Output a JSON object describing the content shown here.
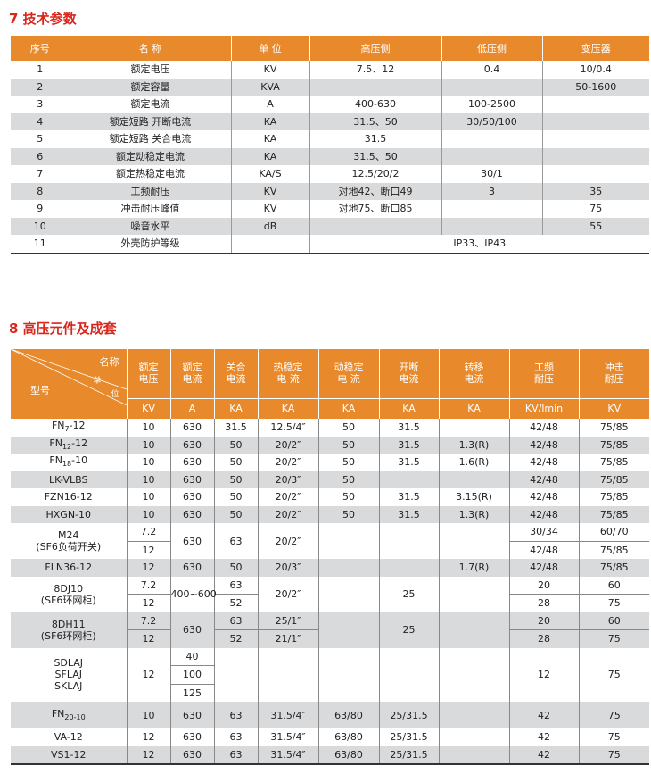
{
  "section1": {
    "title": "7 技术参数",
    "headers": [
      "序号",
      "名  称",
      "单  位",
      "高压侧",
      "低压侧",
      "变压器"
    ],
    "rows": [
      [
        "1",
        "额定电压",
        "KV",
        "7.5、12",
        "0.4",
        "10/0.4"
      ],
      [
        "2",
        "额定容量",
        "KVA",
        "",
        "",
        "50-1600"
      ],
      [
        "3",
        "额定电流",
        "A",
        "400-630",
        "100-2500",
        ""
      ],
      [
        "4",
        "额定短路 开断电流",
        "KA",
        "31.5、50",
        "30/50/100",
        ""
      ],
      [
        "5",
        "额定短路 关合电流",
        "KA",
        "31.5",
        "",
        ""
      ],
      [
        "6",
        "额定动稳定电流",
        "KA",
        "31.5、50",
        "",
        ""
      ],
      [
        "7",
        "额定热稳定电流",
        "KA/S",
        "12.5/20/2",
        "30/1",
        ""
      ],
      [
        "8",
        "工频耐压",
        "KV",
        "对地42、断口49",
        "3",
        "35"
      ],
      [
        "9",
        "冲击耐压峰值",
        "KV",
        "对地75、断口85",
        "",
        "75"
      ],
      [
        "10",
        "噪音水平",
        "dB",
        "",
        "",
        "55"
      ],
      [
        "11",
        "外壳防护等级",
        "",
        "IP33、IP43"
      ]
    ]
  },
  "section2": {
    "title": "8 高压元件及成套",
    "corner": {
      "name": "名称",
      "unit_1": "单",
      "unit_2": "位",
      "model": "型号"
    },
    "columns": [
      {
        "name": "额定\n电压",
        "unit": "KV"
      },
      {
        "name": "额定\n电流",
        "unit": "A"
      },
      {
        "name": "关合\n电流",
        "unit": "KA"
      },
      {
        "name": "热稳定\n电  流",
        "unit": "KA"
      },
      {
        "name": "动稳定\n电    流",
        "unit": "KA"
      },
      {
        "name": "开断\n电流",
        "unit": "KA"
      },
      {
        "name": "转移\n电流",
        "unit": "KA"
      },
      {
        "name": "工频\n耐压",
        "unit": "KV/lmin"
      },
      {
        "name": "冲击\n耐压",
        "unit": "KV"
      }
    ],
    "rows": {
      "fn7": {
        "model": "FN",
        "sub": "7",
        "suffix": "-12",
        "values": [
          "10",
          "630",
          "31.5",
          "12.5/4″",
          "50",
          "31.5",
          "",
          "42/48",
          "75/85"
        ]
      },
      "fn12": {
        "model": "FN",
        "sub": "12",
        "suffix": "-12",
        "values": [
          "10",
          "630",
          "50",
          "20/2″",
          "50",
          "31.5",
          "1.3(R)",
          "42/48",
          "75/85"
        ]
      },
      "fn18": {
        "model": "FN",
        "sub": "18",
        "suffix": "-10",
        "values": [
          "10",
          "630",
          "50",
          "20/2″",
          "50",
          "31.5",
          "1.6(R)",
          "42/48",
          "75/85"
        ]
      },
      "lk": {
        "model": "LK-VLBS",
        "values": [
          "10",
          "630",
          "50",
          "20/3″",
          "50",
          "",
          "",
          "42/48",
          "75/85"
        ]
      },
      "fzn": {
        "model": "FZN16-12",
        "values": [
          "10",
          "630",
          "50",
          "20/2″",
          "50",
          "31.5",
          "3.15(R)",
          "42/48",
          "75/85"
        ]
      },
      "hxgn": {
        "model": "HXGN-10",
        "values": [
          "10",
          "630",
          "50",
          "20/2″",
          "50",
          "31.5",
          "1.3(R)",
          "42/48",
          "75/85"
        ]
      },
      "m24": {
        "model": "M24\n(SF6负荷开关)",
        "volt": [
          "7.2",
          "12"
        ],
        "current": "630",
        "close": "63",
        "thermal": "20/2″",
        "power_freq": [
          "30/34",
          "42/48"
        ],
        "impulse": [
          "60/70",
          "75/85"
        ]
      },
      "fln": {
        "model": "FLN36-12",
        "values": [
          "12",
          "630",
          "50",
          "20/3″",
          "",
          "",
          "1.7(R)",
          "42/48",
          "75/85"
        ]
      },
      "dj10": {
        "model": "8DJ10\n(SF6环网柜)",
        "volt": [
          "7.2",
          "12"
        ],
        "current": "400~600",
        "close": [
          "63",
          "52"
        ],
        "thermal": "20/2″",
        "breaking": "25",
        "power_freq": [
          "20",
          "28"
        ],
        "impulse": [
          "60",
          "75"
        ]
      },
      "dh11": {
        "model": "8DH11\n(SF6环网柜)",
        "volt": [
          "7.2",
          "12"
        ],
        "current": "630",
        "close": [
          "63",
          "52"
        ],
        "thermal": [
          "25/1″",
          "21/1″"
        ],
        "breaking": "25",
        "power_freq": [
          "20",
          "28"
        ],
        "impulse": [
          "60",
          "75"
        ]
      },
      "sdlaj": {
        "model": "SDLAJ\nSFLAJ\nSKLAJ",
        "volt": "12",
        "current": [
          "40",
          "100",
          "125"
        ],
        "power_freq": "12",
        "impulse": "75"
      },
      "fn20": {
        "model": "FN",
        "sub": "20-10",
        "values": [
          "10",
          "630",
          "63",
          "31.5/4″",
          "63/80",
          "25/31.5",
          "",
          "42",
          "75"
        ]
      },
      "va": {
        "model": "VA-12",
        "values": [
          "12",
          "630",
          "63",
          "31.5/4″",
          "63/80",
          "25/31.5",
          "",
          "42",
          "75"
        ]
      },
      "vs1": {
        "model": "VS1-12",
        "values": [
          "12",
          "630",
          "63",
          "31.5/4″",
          "63/80",
          "25/31.5",
          "",
          "42",
          "75"
        ]
      }
    }
  },
  "colors": {
    "header": "#e8892c",
    "stripe": "#d9dadc",
    "title": "#d8281e"
  }
}
